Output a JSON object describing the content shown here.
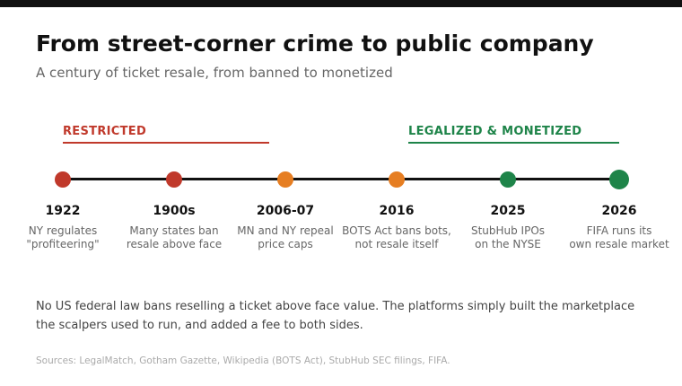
{
  "header": {
    "title": "From street-corner crime to public company",
    "subtitle": "A century of ticket resale, from banned to monetized"
  },
  "eras": [
    {
      "label": "RESTRICTED",
      "color": "#c0392b"
    },
    {
      "label": "LEGALIZED & MONETIZED",
      "color": "#1e8449"
    }
  ],
  "colors": {
    "red": "#c0392b",
    "orange": "#e67e22",
    "green": "#1e8449",
    "axis": "#111111"
  },
  "events": [
    {
      "year": "1922",
      "desc": "NY regulates\n\"profiteering\"",
      "color": "#c0392b"
    },
    {
      "year": "1900s",
      "desc": "Many states ban\nresale above face",
      "color": "#c0392b"
    },
    {
      "year": "2006-07",
      "desc": "MN and NY repeal\nprice caps",
      "color": "#e67e22"
    },
    {
      "year": "2016",
      "desc": "BOTS Act bans bots,\nnot resale itself",
      "color": "#e67e22"
    },
    {
      "year": "2025",
      "desc": "StubHub IPOs\non the NYSE",
      "color": "#1e8449"
    },
    {
      "year": "2026",
      "desc": "FIFA runs its\nown resale market",
      "color": "#1e8449"
    }
  ],
  "note": "No US federal law bans reselling a ticket above face value. The platforms simply built the marketplace the scalpers used to run, and added a fee to both sides.",
  "sources": "Sources: LegalMatch, Gotham Gazette, Wikipedia (BOTS Act), StubHub SEC filings, FIFA."
}
